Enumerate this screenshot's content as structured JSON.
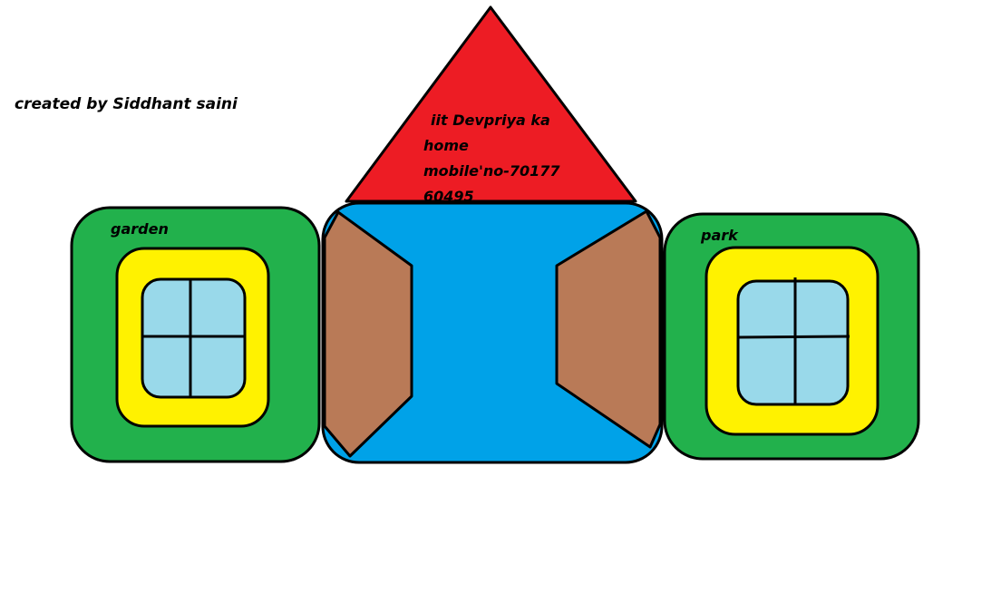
{
  "credit": "created by Siddhant saini",
  "left_block": {
    "label": "garden"
  },
  "right_block": {
    "label": "park"
  },
  "roof": {
    "lines": [
      "iit Devpriya ka",
      "home",
      "mobile'no-70177",
      "60495"
    ]
  },
  "colors": {
    "roof": "#ed1c24",
    "wall": "#00a2e8",
    "door": "#b97a57",
    "green": "#22b14c",
    "yellow": "#fff200",
    "glass": "#99d9ea",
    "outline": "#000000",
    "background": "#ffffff"
  }
}
